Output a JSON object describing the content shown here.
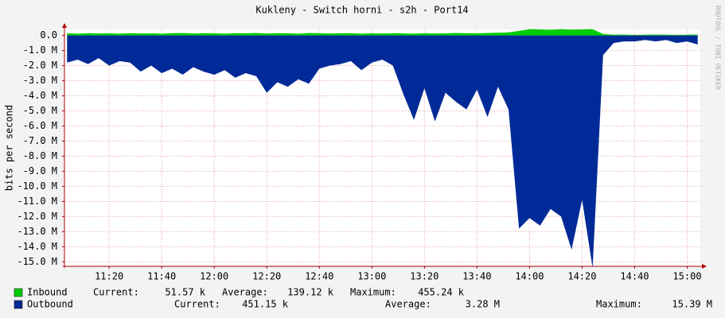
{
  "chart_data": {
    "type": "area",
    "title": "Kukleny - Switch horni - s2h - Port14",
    "y_label": "bits per second",
    "watermark": "RRDTOOL / TOBI OETIKER",
    "x": [
      "11:04",
      "11:08",
      "11:12",
      "11:16",
      "11:20",
      "11:24",
      "11:28",
      "11:32",
      "11:36",
      "11:40",
      "11:44",
      "11:48",
      "11:52",
      "11:56",
      "12:00",
      "12:04",
      "12:08",
      "12:12",
      "12:16",
      "12:20",
      "12:24",
      "12:28",
      "12:32",
      "12:36",
      "12:40",
      "12:44",
      "12:48",
      "12:52",
      "12:56",
      "13:00",
      "13:04",
      "13:08",
      "13:12",
      "13:16",
      "13:20",
      "13:24",
      "13:28",
      "13:32",
      "13:36",
      "13:40",
      "13:44",
      "13:48",
      "13:52",
      "13:56",
      "14:00",
      "14:04",
      "14:08",
      "14:12",
      "14:16",
      "14:20",
      "14:24",
      "14:28",
      "14:32",
      "14:36",
      "14:40",
      "14:44",
      "14:48",
      "14:52",
      "14:56",
      "15:00",
      "15:04"
    ],
    "xlim": [
      "11:03",
      "15:05"
    ],
    "xticks": [
      "11:20",
      "11:40",
      "12:00",
      "12:20",
      "12:40",
      "13:00",
      "13:20",
      "13:40",
      "14:00",
      "14:20",
      "14:40",
      "15:00"
    ],
    "ylim": [
      -15.3,
      0.4
    ],
    "yticks": [
      {
        "value": 0,
        "label": "0.0"
      },
      {
        "value": -1,
        "label": "-1.0 M"
      },
      {
        "value": -2,
        "label": "-2.0 M"
      },
      {
        "value": -3,
        "label": "-3.0 M"
      },
      {
        "value": -4,
        "label": "-4.0 M"
      },
      {
        "value": -5,
        "label": "-5.0 M"
      },
      {
        "value": -6,
        "label": "-6.0 M"
      },
      {
        "value": -7,
        "label": "-7.0 M"
      },
      {
        "value": -8,
        "label": "-8.0 M"
      },
      {
        "value": -9,
        "label": "-9.0 M"
      },
      {
        "value": -10,
        "label": "-10.0 M"
      },
      {
        "value": -11,
        "label": "-11.0 M"
      },
      {
        "value": -12,
        "label": "-12.0 M"
      },
      {
        "value": -13,
        "label": "-13.0 M"
      },
      {
        "value": -14,
        "label": "-14.0 M"
      },
      {
        "value": -15,
        "label": "-15.0 M"
      }
    ],
    "grid": true,
    "series": [
      {
        "name": "Inbound",
        "color": "#00cc00",
        "values": [
          0.15,
          0.12,
          0.15,
          0.13,
          0.14,
          0.12,
          0.15,
          0.13,
          0.14,
          0.12,
          0.15,
          0.16,
          0.13,
          0.15,
          0.14,
          0.12,
          0.15,
          0.14,
          0.16,
          0.13,
          0.15,
          0.14,
          0.12,
          0.16,
          0.15,
          0.13,
          0.14,
          0.15,
          0.12,
          0.14,
          0.13,
          0.15,
          0.14,
          0.12,
          0.15,
          0.13,
          0.14,
          0.16,
          0.15,
          0.14,
          0.16,
          0.18,
          0.2,
          0.3,
          0.42,
          0.4,
          0.38,
          0.41,
          0.39,
          0.4,
          0.42,
          0.1,
          0.05,
          0.06,
          0.04,
          0.05,
          0.06,
          0.05,
          0.04,
          0.05,
          0.06
        ],
        "stats": [
          {
            "label": "Current:",
            "value": "51.57 k"
          },
          {
            "label": "Average:",
            "value": "139.12 k"
          },
          {
            "label": "Maximum:",
            "value": "455.24 k"
          }
        ]
      },
      {
        "name": "Outbound",
        "color": "#002a97",
        "values": [
          -1.8,
          -1.6,
          -1.9,
          -1.5,
          -2.0,
          -1.7,
          -1.8,
          -2.4,
          -2.0,
          -2.5,
          -2.2,
          -2.6,
          -2.1,
          -2.4,
          -2.6,
          -2.3,
          -2.8,
          -2.5,
          -2.7,
          -3.8,
          -3.1,
          -3.4,
          -2.9,
          -3.2,
          -2.2,
          -2.0,
          -1.9,
          -1.7,
          -2.3,
          -1.8,
          -1.6,
          -2.0,
          -3.9,
          -5.6,
          -3.5,
          -5.7,
          -3.8,
          -4.4,
          -4.9,
          -3.6,
          -5.4,
          -3.4,
          -4.9,
          -12.8,
          -12.1,
          -12.6,
          -11.5,
          -12.0,
          -14.2,
          -10.9,
          -15.4,
          -1.3,
          -0.5,
          -0.4,
          -0.4,
          -0.3,
          -0.4,
          -0.3,
          -0.5,
          -0.4,
          -0.6
        ],
        "stats": [
          {
            "label": "Current:",
            "value": "451.15 k"
          },
          {
            "label": "Average:",
            "value": "3.28 M"
          },
          {
            "label": "Maximum:",
            "value": "15.39 M"
          }
        ]
      }
    ]
  }
}
